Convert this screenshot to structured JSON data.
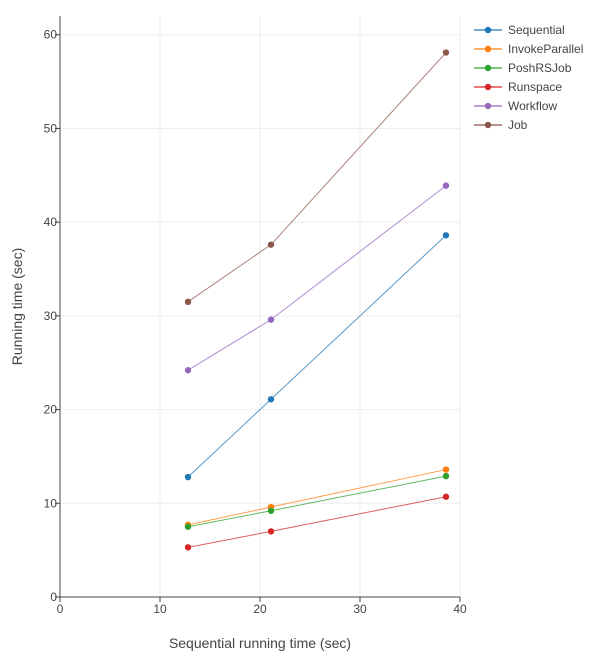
{
  "chart_data": {
    "type": "line",
    "title": "",
    "xlabel": "Sequential running time (sec)",
    "ylabel": "Running time (sec)",
    "xlim": [
      0,
      40
    ],
    "ylim": [
      0,
      62
    ],
    "xticks": [
      0,
      10,
      20,
      30,
      40
    ],
    "yticks": [
      0,
      10,
      20,
      30,
      40,
      50,
      60
    ],
    "grid": true,
    "legend_position": "top-right",
    "x": [
      12.8,
      21.1,
      38.6
    ],
    "series": [
      {
        "name": "Sequential",
        "color": "#1f77b4",
        "values": [
          12.8,
          21.1,
          38.6
        ]
      },
      {
        "name": "InvokeParallel",
        "color": "#ff7f0e",
        "values": [
          7.7,
          9.6,
          13.6
        ]
      },
      {
        "name": "PoshRSJob",
        "color": "#2ca02c",
        "values": [
          7.5,
          9.2,
          12.9
        ]
      },
      {
        "name": "Runspace",
        "color": "#d62728",
        "values": [
          5.3,
          7.0,
          10.7
        ]
      },
      {
        "name": "Workflow",
        "color": "#9467bd",
        "values": [
          24.2,
          29.6,
          43.9
        ]
      },
      {
        "name": "Job",
        "color": "#8c564b",
        "values": [
          31.5,
          37.6,
          58.1
        ]
      }
    ]
  }
}
